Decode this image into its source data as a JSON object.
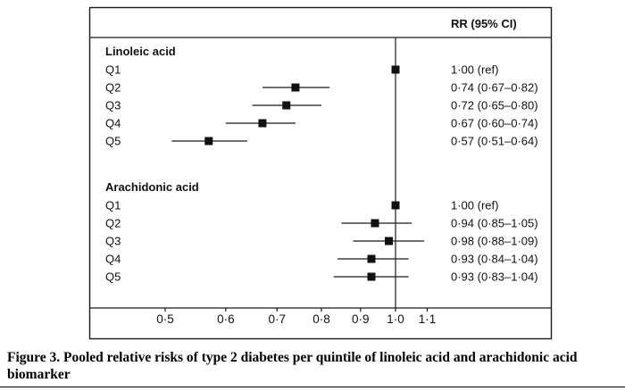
{
  "header": {
    "rr_column_label": "RR (95% CI)"
  },
  "colors": {
    "ink": "#111111",
    "line": "#1a1a1a"
  },
  "chart_data": {
    "type": "forest",
    "scale": "log",
    "x_ticks": [
      0.5,
      0.6,
      0.7,
      0.8,
      0.9,
      1.0,
      1.1
    ],
    "x_tick_labels": [
      "0·5",
      "0·6",
      "0·7",
      "0·8",
      "0·9",
      "1·0",
      "1·1"
    ],
    "xlim": [
      0.45,
      1.18
    ],
    "reference_line": 1.0,
    "rr_column_label": "RR (95% CI)",
    "groups": [
      {
        "label": "Linoleic acid",
        "rows": [
          {
            "label": "Q1",
            "rr": 1.0,
            "lo": null,
            "hi": null,
            "display": "1·00 (ref)"
          },
          {
            "label": "Q2",
            "rr": 0.74,
            "lo": 0.67,
            "hi": 0.82,
            "display": "0·74 (0·67–0·82)"
          },
          {
            "label": "Q3",
            "rr": 0.72,
            "lo": 0.65,
            "hi": 0.8,
            "display": "0·72 (0·65–0·80)"
          },
          {
            "label": "Q4",
            "rr": 0.67,
            "lo": 0.6,
            "hi": 0.74,
            "display": "0·67 (0·60–0·74)"
          },
          {
            "label": "Q5",
            "rr": 0.57,
            "lo": 0.51,
            "hi": 0.64,
            "display": "0·57 (0·51–0·64)"
          }
        ]
      },
      {
        "label": "Arachidonic acid",
        "rows": [
          {
            "label": "Q1",
            "rr": 1.0,
            "lo": null,
            "hi": null,
            "display": "1·00 (ref)"
          },
          {
            "label": "Q2",
            "rr": 0.94,
            "lo": 0.85,
            "hi": 1.05,
            "display": "0·94 (0·85–1·05)"
          },
          {
            "label": "Q3",
            "rr": 0.98,
            "lo": 0.88,
            "hi": 1.09,
            "display": "0·98 (0·88–1·09)"
          },
          {
            "label": "Q4",
            "rr": 0.93,
            "lo": 0.84,
            "hi": 1.04,
            "display": "0·93 (0·84–1·04)"
          },
          {
            "label": "Q5",
            "rr": 0.93,
            "lo": 0.83,
            "hi": 1.04,
            "display": "0·93 (0·83–1·04)"
          }
        ]
      }
    ]
  },
  "caption": {
    "text": "Figure 3. Pooled relative risks of type 2 diabetes per quintile of linoleic acid and arachidonic acid biomarker"
  }
}
